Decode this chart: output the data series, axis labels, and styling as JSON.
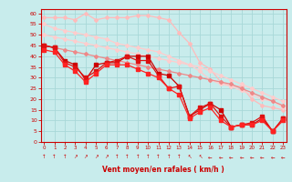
{
  "xlabel": "Vent moyen/en rafales ( km/h )",
  "bg_color": "#c8ecec",
  "grid_color": "#a8d8d8",
  "xlim": [
    -0.3,
    23.3
  ],
  "ylim": [
    0,
    62
  ],
  "yticks": [
    0,
    5,
    10,
    15,
    20,
    25,
    30,
    35,
    40,
    45,
    50,
    55,
    60
  ],
  "xticks": [
    0,
    1,
    2,
    3,
    4,
    5,
    6,
    7,
    8,
    9,
    10,
    11,
    12,
    13,
    14,
    15,
    16,
    17,
    18,
    19,
    20,
    21,
    22,
    23
  ],
  "lines": [
    {
      "x": [
        0,
        1,
        2,
        3,
        4,
        5,
        6,
        7,
        8,
        9,
        10,
        11,
        12,
        13,
        14,
        15,
        16,
        17,
        18,
        19,
        20,
        21,
        22,
        23
      ],
      "y": [
        58,
        58,
        58,
        57,
        60,
        57,
        58,
        58,
        58,
        59,
        59,
        58,
        57,
        51,
        46,
        37,
        34,
        28,
        26,
        26,
        20,
        17,
        16,
        15
      ],
      "color": "#ffbbbb",
      "lw": 0.9,
      "ms": 2.0,
      "marker": "D",
      "alpha": 1.0
    },
    {
      "x": [
        0,
        1,
        2,
        3,
        4,
        5,
        6,
        7,
        8,
        9,
        10,
        11,
        12,
        13,
        14,
        15,
        16,
        17,
        18,
        19,
        20,
        21,
        22,
        23
      ],
      "y": [
        55,
        53,
        52,
        51,
        50,
        49,
        48,
        46,
        45,
        44,
        43,
        42,
        40,
        38,
        36,
        33,
        29,
        27,
        26,
        24,
        22,
        20,
        19,
        16
      ],
      "color": "#ffcccc",
      "lw": 0.9,
      "ms": 2.0,
      "marker": "D",
      "alpha": 1.0
    },
    {
      "x": [
        0,
        1,
        2,
        3,
        4,
        5,
        6,
        7,
        8,
        9,
        10,
        11,
        12,
        13,
        14,
        15,
        16,
        17,
        18,
        19,
        20,
        21,
        22,
        23
      ],
      "y": [
        50,
        49,
        48,
        47,
        46,
        45,
        44,
        43,
        42,
        41,
        40,
        39,
        38,
        37,
        36,
        35,
        33,
        31,
        29,
        27,
        25,
        23,
        21,
        19
      ],
      "color": "#ffcccc",
      "lw": 0.9,
      "ms": 2.0,
      "marker": "D",
      "alpha": 1.0
    },
    {
      "x": [
        0,
        1,
        2,
        3,
        4,
        5,
        6,
        7,
        8,
        9,
        10,
        11,
        12,
        13,
        14,
        15,
        16,
        17,
        18,
        19,
        20,
        21,
        22,
        23
      ],
      "y": [
        45,
        44,
        43,
        42,
        41,
        40,
        39,
        38,
        37,
        36,
        35,
        34,
        33,
        32,
        31,
        30,
        29,
        28,
        27,
        25,
        23,
        21,
        19,
        17
      ],
      "color": "#ee8888",
      "lw": 0.9,
      "ms": 2.0,
      "marker": "D",
      "alpha": 1.0
    },
    {
      "x": [
        0,
        1,
        2,
        3,
        4,
        5,
        6,
        7,
        8,
        9,
        10,
        11,
        12,
        13,
        14,
        15,
        16,
        17,
        18,
        19,
        20,
        21,
        22,
        23
      ],
      "y": [
        45,
        44,
        38,
        36,
        29,
        36,
        37,
        37,
        40,
        40,
        40,
        32,
        31,
        26,
        12,
        15,
        18,
        15,
        7,
        8,
        8,
        11,
        5,
        11
      ],
      "color": "#cc0000",
      "lw": 0.9,
      "ms": 2.5,
      "marker": "s",
      "alpha": 1.0
    },
    {
      "x": [
        0,
        1,
        2,
        3,
        4,
        5,
        6,
        7,
        8,
        9,
        10,
        11,
        12,
        13,
        14,
        15,
        16,
        17,
        18,
        19,
        20,
        21,
        22,
        23
      ],
      "y": [
        45,
        44,
        37,
        35,
        30,
        33,
        37,
        38,
        40,
        38,
        38,
        31,
        25,
        26,
        12,
        16,
        18,
        12,
        7,
        8,
        9,
        12,
        5,
        11
      ],
      "color": "#dd1111",
      "lw": 0.9,
      "ms": 2.5,
      "marker": "s",
      "alpha": 1.0
    },
    {
      "x": [
        0,
        1,
        2,
        3,
        4,
        5,
        6,
        7,
        8,
        9,
        10,
        11,
        12,
        13,
        14,
        15,
        16,
        17,
        18,
        19,
        20,
        21,
        22,
        23
      ],
      "y": [
        43,
        42,
        36,
        33,
        28,
        32,
        36,
        36,
        36,
        34,
        32,
        30,
        25,
        22,
        11,
        14,
        16,
        10,
        7,
        8,
        8,
        10,
        5,
        10
      ],
      "color": "#ff2222",
      "lw": 0.9,
      "ms": 2.5,
      "marker": "s",
      "alpha": 1.0
    }
  ],
  "arrows": [
    "N",
    "N",
    "N",
    "NE",
    "NE",
    "NE",
    "NE",
    "N",
    "N",
    "N",
    "N",
    "N",
    "N",
    "N",
    "NW",
    "NW",
    "W",
    "W",
    "W",
    "W",
    "W",
    "W",
    "W",
    "W"
  ],
  "axis_color": "#cc0000",
  "tick_color": "#cc0000"
}
